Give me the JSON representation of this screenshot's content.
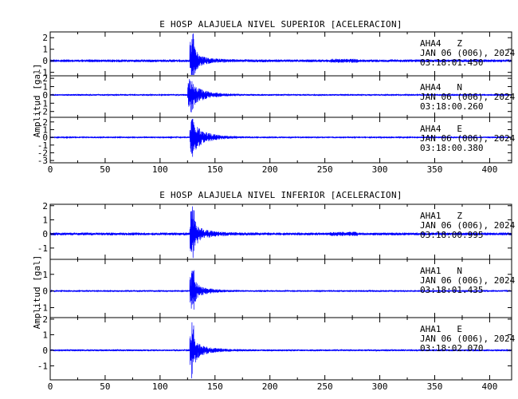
{
  "chart_data": [
    {
      "type": "line",
      "title": "E HOSP ALAJUELA NIVEL SUPERIOR [ACELERACION]",
      "ylabel": "Amplitud [gal]",
      "xlabel": "",
      "xlim": [
        0,
        420
      ],
      "x_ticks": [
        0,
        50,
        100,
        150,
        200,
        250,
        300,
        350,
        400
      ],
      "grid": false,
      "line_color": "#0000ff",
      "traces": [
        {
          "station": "AHA4",
          "component": "Z",
          "date": "JAN 06 (006), 2024",
          "time": "03:18:01.450",
          "ylim": [
            -1.3,
            2.5
          ],
          "y_ticks": [
            -1,
            0,
            1,
            2
          ],
          "onset_s": 127,
          "peak_gal": 2.4,
          "coda_gal": 0.45,
          "noise_gal": 0.12
        },
        {
          "station": "AHA4",
          "component": "N",
          "date": "JAN 06 (006), 2024",
          "time": "03:18:00.260",
          "ylim": [
            -2.7,
            2.3
          ],
          "y_ticks": [
            -2,
            -1,
            0,
            1,
            2
          ],
          "onset_s": 125,
          "peak_gal": 2.1,
          "coda_gal": 1.2,
          "noise_gal": 0.1
        },
        {
          "station": "AHA4",
          "component": "E",
          "date": "JAN 06 (006), 2024",
          "time": "03:18:00.380",
          "ylim": [
            -3.3,
            2.6
          ],
          "y_ticks": [
            -3,
            -2,
            -1,
            0,
            1,
            2
          ],
          "onset_s": 127,
          "peak_gal": 2.5,
          "coda_gal": 1.4,
          "noise_gal": 0.1
        }
      ]
    },
    {
      "type": "line",
      "title": "E HOSP ALAJUELA NIVEL INFERIOR [ACELERACION]",
      "ylabel": "Amplitud [gal]",
      "xlabel": "",
      "xlim": [
        0,
        420
      ],
      "x_ticks": [
        0,
        50,
        100,
        150,
        200,
        250,
        300,
        350,
        400
      ],
      "grid": false,
      "line_color": "#0000ff",
      "traces": [
        {
          "station": "AHA1",
          "component": "Z",
          "date": "JAN 06 (006), 2024",
          "time": "03:18:00.995",
          "ylim": [
            -1.8,
            2.1
          ],
          "y_ticks": [
            -1,
            0,
            1,
            2
          ],
          "onset_s": 127,
          "peak_gal": 1.9,
          "coda_gal": 0.5,
          "noise_gal": 0.1
        },
        {
          "station": "AHA1",
          "component": "N",
          "date": "JAN 06 (006), 2024",
          "time": "03:18:01.435",
          "ylim": [
            -1.6,
            1.9
          ],
          "y_ticks": [
            -1,
            0,
            1
          ],
          "onset_s": 127,
          "peak_gal": 1.3,
          "coda_gal": 0.35,
          "noise_gal": 0.05
        },
        {
          "station": "AHA1",
          "component": "E",
          "date": "JAN 06 (006), 2024",
          "time": "03:18:02.070",
          "ylim": [
            -1.9,
            2.1
          ],
          "y_ticks": [
            -1,
            0,
            1,
            2
          ],
          "onset_s": 127,
          "peak_gal": 1.8,
          "coda_gal": 0.45,
          "noise_gal": 0.06
        }
      ]
    }
  ]
}
